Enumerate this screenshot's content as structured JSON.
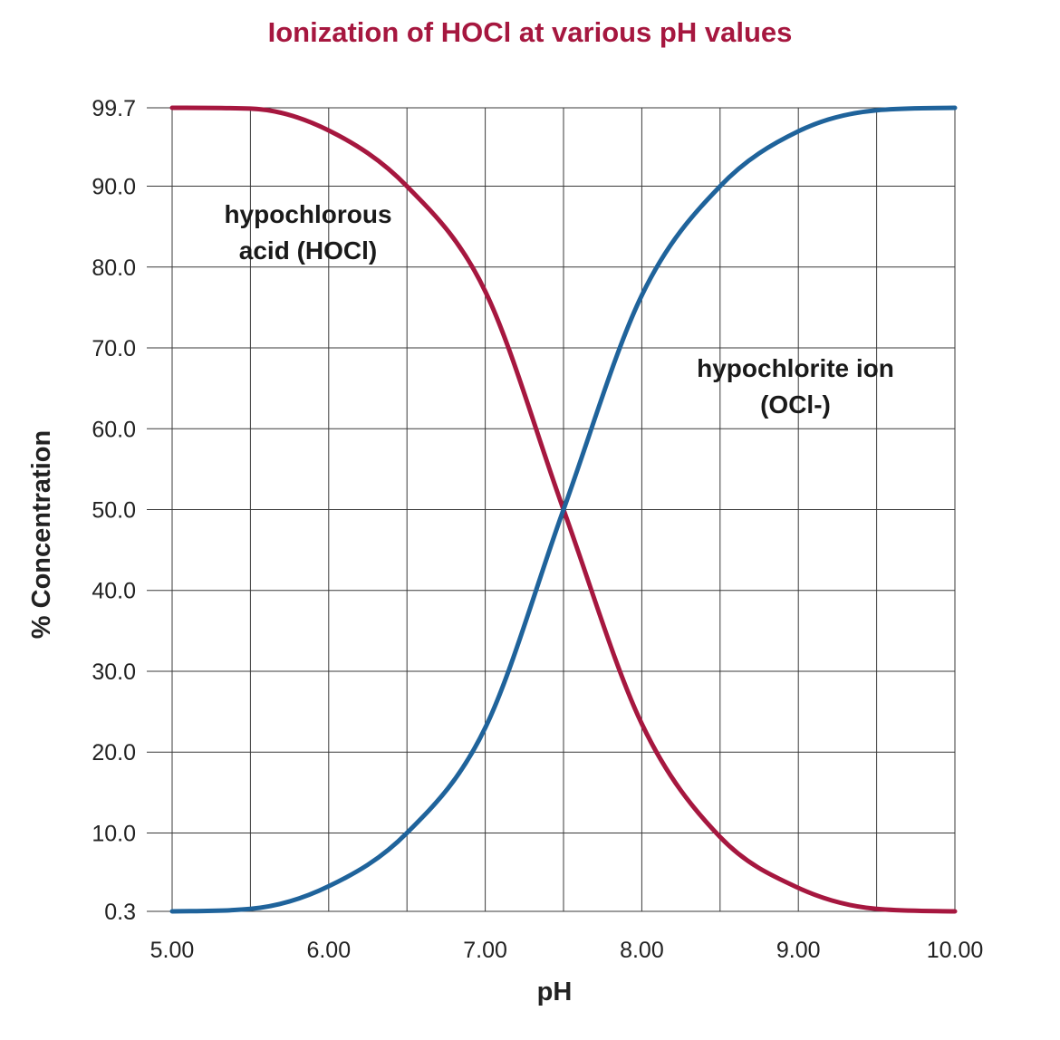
{
  "chart_data": {
    "type": "line",
    "title": "Ionization of HOCl at various pH values",
    "xlabel": "pH",
    "ylabel": "% Concentration",
    "x_ticks": [
      "5.00",
      "6.00",
      "7.00",
      "8.00",
      "9.00",
      "10.00"
    ],
    "y_ticks": [
      "0.3",
      "10.0",
      "20.0",
      "30.0",
      "40.0",
      "50.0",
      "60.0",
      "70.0",
      "80.0",
      "90.0",
      "99.7"
    ],
    "xlim": [
      5.0,
      10.0
    ],
    "ylim": [
      0.3,
      99.7
    ],
    "grid": true,
    "x": [
      5.0,
      5.5,
      6.0,
      6.5,
      7.0,
      7.5,
      8.0,
      8.5,
      9.0,
      9.5,
      10.0
    ],
    "series": [
      {
        "name": "hypochlorous acid (HOCl)",
        "label_lines": [
          "hypochlorous",
          "acid (HOCl)"
        ],
        "color": "#a6173f",
        "values": [
          99.7,
          99.6,
          96.9,
          90.0,
          77.0,
          50.0,
          23.5,
          9.5,
          3.2,
          0.6,
          0.3
        ]
      },
      {
        "name": "hypochlorite ion (OCl-)",
        "label_lines": [
          "hypochlorite ion",
          "(OCl-)"
        ],
        "color": "#1f639b",
        "values": [
          0.3,
          0.6,
          3.4,
          10.0,
          23.0,
          50.0,
          76.5,
          90.0,
          96.8,
          99.4,
          99.7
        ]
      }
    ]
  }
}
